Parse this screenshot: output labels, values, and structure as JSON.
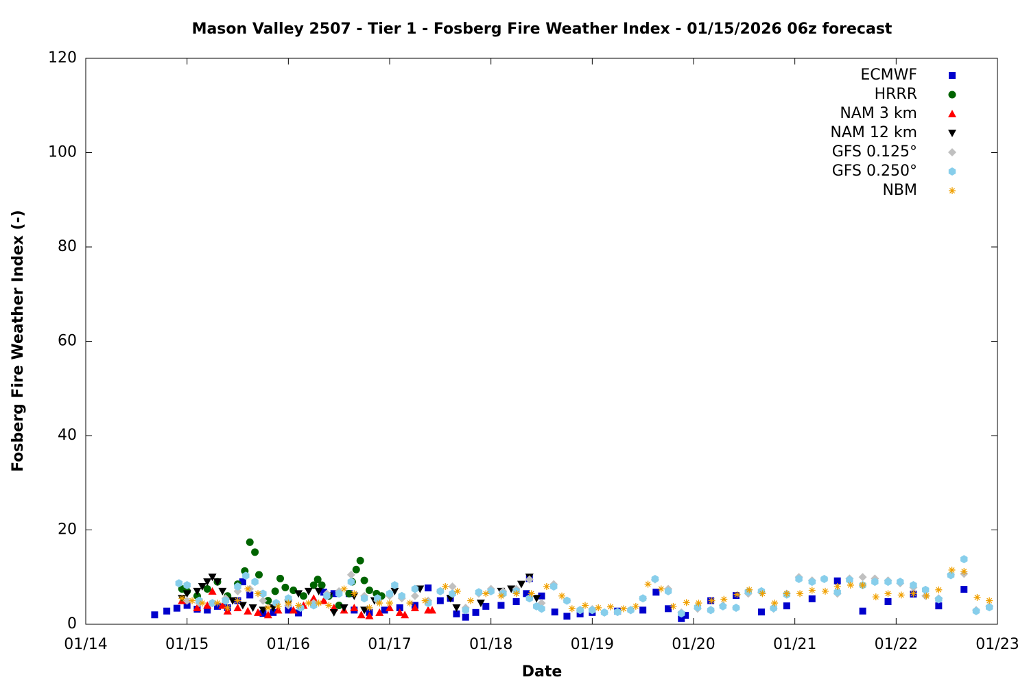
{
  "chart_data": {
    "type": "scatter",
    "title": "Mason Valley 2507 - Tier 1 - Fosberg Fire Weather Index - 01/15/2026 06z forecast",
    "x_label": "Date",
    "y_label": "Fosberg Fire Weather Index (-)",
    "xlim": [
      14,
      23
    ],
    "xticks": [
      {
        "value": 14,
        "label": "01/14"
      },
      {
        "value": 15,
        "label": "01/15"
      },
      {
        "value": 16,
        "label": "01/16"
      },
      {
        "value": 17,
        "label": "01/17"
      },
      {
        "value": 18,
        "label": "01/18"
      },
      {
        "value": 19,
        "label": "01/19"
      },
      {
        "value": 20,
        "label": "01/20"
      },
      {
        "value": 21,
        "label": "01/21"
      },
      {
        "value": 22,
        "label": "01/22"
      },
      {
        "value": 23,
        "label": "01/23"
      }
    ],
    "ylim": [
      0,
      120
    ],
    "yticks": [
      0,
      20,
      40,
      60,
      80,
      100,
      120
    ],
    "legend": "top-right",
    "series": [
      {
        "name": "ECMWF",
        "color": "#0000cc",
        "marker": "square",
        "x": [
          14.68,
          14.8,
          14.9,
          15.0,
          15.1,
          15.2,
          15.3,
          15.4,
          15.5,
          15.55,
          15.62,
          15.75,
          15.85,
          16.0,
          16.1,
          16.25,
          16.35,
          16.45,
          16.6,
          16.65,
          16.8,
          16.95,
          17.1,
          17.25,
          17.38,
          17.5,
          17.6,
          17.66,
          17.75,
          17.85,
          17.95,
          18.1,
          18.25,
          18.35,
          18.38,
          18.5,
          18.63,
          18.75,
          18.88,
          19.0,
          19.25,
          19.5,
          19.63,
          19.75,
          19.88,
          19.92,
          20.17,
          20.42,
          20.67,
          20.92,
          21.17,
          21.42,
          21.67,
          21.92,
          22.17,
          22.42,
          22.67
        ],
        "values": [
          2.0,
          2.8,
          3.4,
          4.0,
          3.2,
          3.0,
          3.8,
          3.5,
          5.0,
          9.0,
          6.2,
          2.3,
          2.5,
          3.0,
          2.4,
          4.5,
          6.8,
          6.5,
          6.5,
          3.0,
          2.5,
          3.0,
          3.5,
          4.0,
          7.7,
          5.0,
          5.5,
          2.2,
          1.5,
          2.5,
          3.8,
          4.0,
          4.8,
          6.5,
          9.7,
          6.0,
          2.6,
          1.7,
          2.2,
          2.5,
          2.8,
          3.0,
          6.8,
          3.3,
          1.2,
          1.9,
          5.0,
          6.1,
          2.6,
          3.9,
          5.4,
          9.2,
          2.8,
          4.8,
          6.4,
          3.9,
          7.4
        ]
      },
      {
        "name": "HRRR",
        "color": "#006400",
        "marker": "circle",
        "x": [
          14.95,
          15.0,
          15.1,
          15.2,
          15.3,
          15.4,
          15.5,
          15.57,
          15.62,
          15.67,
          15.71,
          15.8,
          15.87,
          15.92,
          15.97,
          16.05,
          16.15,
          16.25,
          16.29,
          16.33,
          16.4,
          16.5,
          16.6,
          16.63,
          16.67,
          16.71,
          16.75,
          16.8,
          16.87,
          16.92
        ],
        "values": [
          7.5,
          7.0,
          6.0,
          7.5,
          9.0,
          6.0,
          8.5,
          11.3,
          17.4,
          15.3,
          10.5,
          5.0,
          7.0,
          9.7,
          7.8,
          7.2,
          6.0,
          8.3,
          9.5,
          8.3,
          6.0,
          4.0,
          6.5,
          9.0,
          11.6,
          13.5,
          9.3,
          7.2,
          6.5,
          6.0
        ]
      },
      {
        "name": "NAM 3 km",
        "color": "#ff0000",
        "marker": "triangle-up",
        "x": [
          14.95,
          15.1,
          15.2,
          15.25,
          15.35,
          15.4,
          15.5,
          15.6,
          15.7,
          15.8,
          15.9,
          16.05,
          16.15,
          16.25,
          16.35,
          16.45,
          16.55,
          16.65,
          16.72,
          16.8,
          16.9,
          17.0,
          17.1,
          17.15,
          17.25,
          17.38,
          17.42
        ],
        "values": [
          5.0,
          3.5,
          4.0,
          7.0,
          4.0,
          2.8,
          3.5,
          2.8,
          2.5,
          2.0,
          3.0,
          3.0,
          4.0,
          5.5,
          5.0,
          3.5,
          3.0,
          3.5,
          2.0,
          1.8,
          2.5,
          3.5,
          2.5,
          2.0,
          3.5,
          3.0,
          3.0
        ]
      },
      {
        "name": "NAM 12 km",
        "color": "#000000",
        "marker": "triangle-down",
        "x": [
          14.95,
          15.0,
          15.1,
          15.15,
          15.2,
          15.25,
          15.3,
          15.35,
          15.45,
          15.55,
          15.65,
          15.75,
          15.85,
          16.0,
          16.1,
          16.2,
          16.3,
          16.4,
          16.45,
          16.55,
          16.65,
          16.75,
          16.85,
          17.05,
          17.3,
          17.6,
          17.66,
          17.9,
          18.1,
          18.2,
          18.3,
          18.38,
          18.45
        ],
        "values": [
          5.5,
          6.5,
          7.0,
          8.0,
          9.0,
          10.0,
          9.0,
          7.0,
          5.0,
          4.0,
          3.5,
          3.0,
          3.5,
          4.5,
          6.5,
          7.0,
          7.0,
          6.0,
          2.5,
          3.5,
          6.0,
          3.0,
          5.0,
          7.0,
          7.5,
          5.5,
          3.5,
          4.5,
          7.0,
          7.5,
          8.5,
          10.0,
          5.5
        ]
      },
      {
        "name": "GFS 0.125°",
        "color": "#c0c0c0",
        "marker": "diamond",
        "x": [
          15.0,
          15.12,
          15.25,
          15.38,
          15.5,
          15.62,
          15.75,
          15.88,
          16.0,
          16.12,
          16.25,
          16.38,
          16.5,
          16.62,
          16.75,
          16.88,
          17.0,
          17.12,
          17.25,
          17.38,
          17.5,
          17.62,
          17.75,
          17.88,
          18.0,
          18.12,
          18.25,
          18.38,
          18.5,
          18.62,
          18.75,
          18.88,
          19.0,
          19.12,
          19.25,
          19.38,
          19.5,
          19.62,
          19.75,
          19.88,
          20.04,
          20.17,
          20.29,
          20.42,
          20.54,
          20.67,
          20.79,
          20.92,
          21.04,
          21.17,
          21.29,
          21.42,
          21.54,
          21.67,
          21.79,
          21.92,
          22.04,
          22.17,
          22.29,
          22.42,
          22.54,
          22.67,
          22.79,
          22.92
        ],
        "values": [
          5.0,
          4.5,
          4.5,
          5.5,
          7.0,
          7.5,
          5.0,
          4.5,
          4.0,
          3.5,
          4.5,
          6.5,
          7.0,
          10.5,
          6.0,
          5.0,
          6.0,
          5.5,
          6.0,
          5.0,
          7.0,
          8.0,
          3.5,
          6.5,
          7.5,
          7.0,
          7.5,
          9.5,
          4.5,
          8.5,
          5.0,
          3.0,
          3.2,
          2.5,
          2.6,
          3.0,
          5.5,
          9.5,
          7.5,
          2.5,
          3.3,
          3.0,
          4.0,
          3.5,
          6.5,
          6.8,
          3.3,
          6.5,
          10.0,
          9.3,
          9.6,
          6.5,
          9.7,
          10.0,
          9.7,
          9.3,
          8.7,
          7.8,
          6.0,
          5.5,
          10.5,
          10.7,
          3.0,
          3.8
        ]
      },
      {
        "name": "GFS 0.250°",
        "color": "#87ceeb",
        "marker": "hexagon",
        "x": [
          14.92,
          15.0,
          15.12,
          15.25,
          15.38,
          15.5,
          15.58,
          15.67,
          15.75,
          15.88,
          16.0,
          16.12,
          16.25,
          16.38,
          16.5,
          16.62,
          16.75,
          16.88,
          17.0,
          17.05,
          17.12,
          17.25,
          17.38,
          17.5,
          17.62,
          17.75,
          17.88,
          18.0,
          18.12,
          18.25,
          18.38,
          18.45,
          18.5,
          18.62,
          18.75,
          18.88,
          19.0,
          19.12,
          19.25,
          19.38,
          19.5,
          19.62,
          19.75,
          19.88,
          20.04,
          20.17,
          20.29,
          20.42,
          20.54,
          20.67,
          20.79,
          20.92,
          21.04,
          21.17,
          21.29,
          21.42,
          21.54,
          21.67,
          21.79,
          21.92,
          22.04,
          22.17,
          22.29,
          22.42,
          22.54,
          22.67,
          22.79,
          22.92
        ],
        "values": [
          8.7,
          8.3,
          5.0,
          4.5,
          5.0,
          8.0,
          10.3,
          9.0,
          6.5,
          4.5,
          5.5,
          3.5,
          4.0,
          6.0,
          6.5,
          9.0,
          5.5,
          5.5,
          6.5,
          8.3,
          6.0,
          7.5,
          4.5,
          7.0,
          6.5,
          3.0,
          6.8,
          7.0,
          6.5,
          7.0,
          5.5,
          3.8,
          3.3,
          8.0,
          5.0,
          3.0,
          3.0,
          2.5,
          2.6,
          3.0,
          5.5,
          9.6,
          7.0,
          2.3,
          3.6,
          3.0,
          3.8,
          3.5,
          6.9,
          7.0,
          3.4,
          6.3,
          9.6,
          9.0,
          9.6,
          6.8,
          9.4,
          8.3,
          9.0,
          9.0,
          9.0,
          8.3,
          7.3,
          5.3,
          10.4,
          13.8,
          2.8,
          3.6
        ]
      },
      {
        "name": "NBM",
        "color": "#f0a000",
        "marker": "asterisk",
        "x": [
          14.95,
          15.05,
          15.15,
          15.3,
          15.4,
          15.5,
          15.6,
          15.7,
          15.8,
          15.9,
          16.0,
          16.1,
          16.2,
          16.3,
          16.4,
          16.55,
          16.65,
          16.8,
          16.9,
          17.0,
          17.2,
          17.35,
          17.55,
          17.67,
          17.8,
          17.95,
          18.1,
          18.25,
          18.4,
          18.55,
          18.7,
          18.8,
          18.93,
          19.06,
          19.18,
          19.31,
          19.43,
          19.55,
          19.68,
          19.8,
          19.93,
          20.05,
          20.18,
          20.3,
          20.43,
          20.55,
          20.68,
          20.8,
          20.92,
          21.05,
          21.17,
          21.3,
          21.42,
          21.55,
          21.67,
          21.8,
          21.92,
          22.05,
          22.17,
          22.3,
          22.42,
          22.55,
          22.67,
          22.8,
          22.92
        ],
        "values": [
          5.5,
          5.0,
          4.5,
          4.5,
          3.5,
          5.0,
          7.5,
          6.5,
          3.5,
          3.8,
          4.5,
          4.0,
          4.5,
          4.5,
          4.0,
          7.5,
          6.5,
          3.5,
          4.5,
          4.5,
          4.5,
          5.0,
          8.0,
          7.0,
          5.0,
          6.5,
          6.0,
          6.5,
          6.5,
          8.0,
          6.0,
          3.3,
          4.0,
          3.5,
          3.7,
          3.3,
          3.8,
          8.5,
          7.5,
          3.8,
          4.6,
          4.5,
          5.0,
          5.3,
          6.3,
          7.3,
          6.5,
          4.5,
          6.5,
          6.5,
          7.2,
          7.0,
          8.0,
          8.3,
          8.3,
          5.8,
          6.5,
          6.2,
          6.5,
          6.0,
          7.3,
          11.5,
          11.2,
          5.7,
          5.0
        ]
      }
    ]
  }
}
